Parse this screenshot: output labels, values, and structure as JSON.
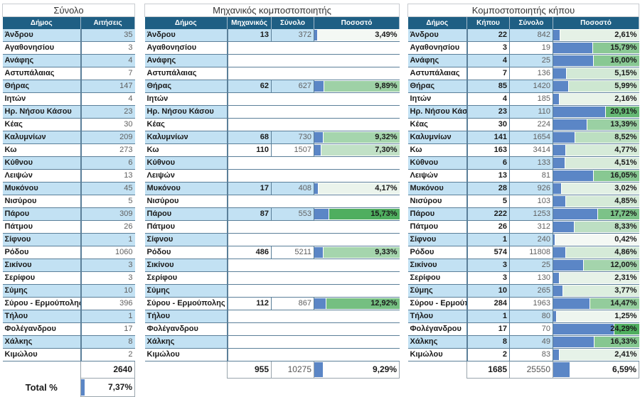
{
  "summary_table": {
    "title": "Σύνολο",
    "headers": [
      "Δήμος",
      "Αιτήσεις"
    ],
    "rows": [
      {
        "municipality": "Άνδρου",
        "applications": "35"
      },
      {
        "municipality": "Αγαθονησίου",
        "applications": "3"
      },
      {
        "municipality": "Ανάφης",
        "applications": "4"
      },
      {
        "municipality": "Αστυπάλαιας",
        "applications": "7"
      },
      {
        "municipality": "Θήρας",
        "applications": "147"
      },
      {
        "municipality": "Ιητών",
        "applications": "4"
      },
      {
        "municipality": "Ηρ. Νήσου Κάσου",
        "applications": "23"
      },
      {
        "municipality": "Κέας",
        "applications": "30"
      },
      {
        "municipality": "Καλυμνίων",
        "applications": "209"
      },
      {
        "municipality": "Κω",
        "applications": "273"
      },
      {
        "municipality": "Κύθνου",
        "applications": "6"
      },
      {
        "municipality": "Λειψών",
        "applications": "13"
      },
      {
        "municipality": "Μυκόνου",
        "applications": "45"
      },
      {
        "municipality": "Νισύρου",
        "applications": "5"
      },
      {
        "municipality": "Πάρου",
        "applications": "309"
      },
      {
        "municipality": "Πάτμου",
        "applications": "26"
      },
      {
        "municipality": "Σίφνου",
        "applications": "1"
      },
      {
        "municipality": "Ρόδου",
        "applications": "1060"
      },
      {
        "municipality": "Σικίνου",
        "applications": "3"
      },
      {
        "municipality": "Σερίφου",
        "applications": "3"
      },
      {
        "municipality": "Σύμης",
        "applications": "10"
      },
      {
        "municipality": "Σύρου - Ερμούπολης",
        "applications": "396"
      },
      {
        "municipality": "Τήλου",
        "applications": "1"
      },
      {
        "municipality": "Φολέγανδρου",
        "applications": "17"
      },
      {
        "municipality": "Χάλκης",
        "applications": "8"
      },
      {
        "municipality": "Κιμώλου",
        "applications": "2"
      }
    ],
    "total": "2640",
    "total_pct_label": "Total %",
    "total_pct": "7,37%",
    "total_pct_value": 7.37
  },
  "mechanical_table": {
    "title": "Μηχανικός κομποστοποιητής",
    "headers": [
      "Δήμος",
      "Μηχανικός",
      "Σύνολο",
      "Ποσοστό"
    ],
    "rows": [
      {
        "municipality": "Άνδρου",
        "count": "13",
        "total": "372",
        "pct": "3,49%",
        "pct_value": 3.49
      },
      {
        "municipality": "Αγαθονησίου",
        "count": "",
        "total": "",
        "pct": "",
        "pct_value": null
      },
      {
        "municipality": "Ανάφης",
        "count": "",
        "total": "",
        "pct": "",
        "pct_value": null
      },
      {
        "municipality": "Αστυπάλαιας",
        "count": "",
        "total": "",
        "pct": "",
        "pct_value": null
      },
      {
        "municipality": "Θήρας",
        "count": "62",
        "total": "627",
        "pct": "9,89%",
        "pct_value": 9.89
      },
      {
        "municipality": "Ιητών",
        "count": "",
        "total": "",
        "pct": "",
        "pct_value": null
      },
      {
        "municipality": "Ηρ. Νήσου Κάσου",
        "count": "",
        "total": "",
        "pct": "",
        "pct_value": null
      },
      {
        "municipality": "Κέας",
        "count": "",
        "total": "",
        "pct": "",
        "pct_value": null
      },
      {
        "municipality": "Καλυμνίων",
        "count": "68",
        "total": "730",
        "pct": "9,32%",
        "pct_value": 9.32
      },
      {
        "municipality": "Κω",
        "count": "110",
        "total": "1507",
        "pct": "7,30%",
        "pct_value": 7.3
      },
      {
        "municipality": "Κύθνου",
        "count": "",
        "total": "",
        "pct": "",
        "pct_value": null
      },
      {
        "municipality": "Λειψών",
        "count": "",
        "total": "",
        "pct": "",
        "pct_value": null
      },
      {
        "municipality": "Μυκόνου",
        "count": "17",
        "total": "408",
        "pct": "4,17%",
        "pct_value": 4.17
      },
      {
        "municipality": "Νισύρου",
        "count": "",
        "total": "",
        "pct": "",
        "pct_value": null
      },
      {
        "municipality": "Πάρου",
        "count": "87",
        "total": "553",
        "pct": "15,73%",
        "pct_value": 15.73
      },
      {
        "municipality": "Πάτμου",
        "count": "",
        "total": "",
        "pct": "",
        "pct_value": null
      },
      {
        "municipality": "Σίφνου",
        "count": "",
        "total": "",
        "pct": "",
        "pct_value": null
      },
      {
        "municipality": "Ρόδου",
        "count": "486",
        "total": "5211",
        "pct": "9,33%",
        "pct_value": 9.33
      },
      {
        "municipality": "Σικίνου",
        "count": "",
        "total": "",
        "pct": "",
        "pct_value": null
      },
      {
        "municipality": "Σερίφου",
        "count": "",
        "total": "",
        "pct": "",
        "pct_value": null
      },
      {
        "municipality": "Σύμης",
        "count": "",
        "total": "",
        "pct": "",
        "pct_value": null
      },
      {
        "municipality": "Σύρου - Ερμούπολης",
        "count": "112",
        "total": "867",
        "pct": "12,92%",
        "pct_value": 12.92
      },
      {
        "municipality": "Τήλου",
        "count": "",
        "total": "",
        "pct": "",
        "pct_value": null
      },
      {
        "municipality": "Φολέγανδρου",
        "count": "",
        "total": "",
        "pct": "",
        "pct_value": null
      },
      {
        "municipality": "Χάλκης",
        "count": "",
        "total": "",
        "pct": "",
        "pct_value": null
      },
      {
        "municipality": "Κιμώλου",
        "count": "",
        "total": "",
        "pct": "",
        "pct_value": null
      }
    ],
    "totals": {
      "count": "955",
      "total": "10275",
      "pct": "9,29%",
      "pct_value": 9.29
    }
  },
  "garden_table": {
    "title": "Κομποστοποιητής κήπου",
    "headers": [
      "Δήμος",
      "Κήπου",
      "Σύνολο",
      "Ποσοστό"
    ],
    "rows": [
      {
        "municipality": "Άνδρου",
        "count": "22",
        "total": "842",
        "pct": "2,61%",
        "pct_value": 2.61
      },
      {
        "municipality": "Αγαθονησίου",
        "count": "3",
        "total": "19",
        "pct": "15,79%",
        "pct_value": 15.79
      },
      {
        "municipality": "Ανάφης",
        "count": "4",
        "total": "25",
        "pct": "16,00%",
        "pct_value": 16.0
      },
      {
        "municipality": "Αστυπάλαιας",
        "count": "7",
        "total": "136",
        "pct": "5,15%",
        "pct_value": 5.15
      },
      {
        "municipality": "Θήρας",
        "count": "85",
        "total": "1420",
        "pct": "5,99%",
        "pct_value": 5.99
      },
      {
        "municipality": "Ιητών",
        "count": "4",
        "total": "185",
        "pct": "2,16%",
        "pct_value": 2.16
      },
      {
        "municipality": "Ηρ. Νήσου Κάσ",
        "count": "23",
        "total": "110",
        "pct": "20,91%",
        "pct_value": 20.91
      },
      {
        "municipality": "Κέας",
        "count": "30",
        "total": "224",
        "pct": "13,39%",
        "pct_value": 13.39
      },
      {
        "municipality": "Καλυμνίων",
        "count": "141",
        "total": "1654",
        "pct": "8,52%",
        "pct_value": 8.52
      },
      {
        "municipality": "Κω",
        "count": "163",
        "total": "3414",
        "pct": "4,77%",
        "pct_value": 4.77
      },
      {
        "municipality": "Κύθνου",
        "count": "6",
        "total": "133",
        "pct": "4,51%",
        "pct_value": 4.51
      },
      {
        "municipality": "Λειψών",
        "count": "13",
        "total": "81",
        "pct": "16,05%",
        "pct_value": 16.05
      },
      {
        "municipality": "Μυκόνου",
        "count": "28",
        "total": "926",
        "pct": "3,02%",
        "pct_value": 3.02
      },
      {
        "municipality": "Νισύρου",
        "count": "5",
        "total": "103",
        "pct": "4,85%",
        "pct_value": 4.85
      },
      {
        "municipality": "Πάρου",
        "count": "222",
        "total": "1253",
        "pct": "17,72%",
        "pct_value": 17.72
      },
      {
        "municipality": "Πάτμου",
        "count": "26",
        "total": "312",
        "pct": "8,33%",
        "pct_value": 8.33
      },
      {
        "municipality": "Σίφνου",
        "count": "1",
        "total": "240",
        "pct": "0,42%",
        "pct_value": 0.42
      },
      {
        "municipality": "Ρόδου",
        "count": "574",
        "total": "11808",
        "pct": "4,86%",
        "pct_value": 4.86
      },
      {
        "municipality": "Σικίνου",
        "count": "3",
        "total": "25",
        "pct": "12,00%",
        "pct_value": 12.0
      },
      {
        "municipality": "Σερίφου",
        "count": "3",
        "total": "130",
        "pct": "2,31%",
        "pct_value": 2.31
      },
      {
        "municipality": "Σύμης",
        "count": "10",
        "total": "265",
        "pct": "3,77%",
        "pct_value": 3.77
      },
      {
        "municipality": "Σύρου - Ερμούπ",
        "count": "284",
        "total": "1963",
        "pct": "14,47%",
        "pct_value": 14.47
      },
      {
        "municipality": "Τήλου",
        "count": "1",
        "total": "80",
        "pct": "1,25%",
        "pct_value": 1.25
      },
      {
        "municipality": "Φολέγανδρου",
        "count": "17",
        "total": "70",
        "pct": "24,29%",
        "pct_value": 24.29
      },
      {
        "municipality": "Χάλκης",
        "count": "8",
        "total": "49",
        "pct": "16,33%",
        "pct_value": 16.33
      },
      {
        "municipality": "Κιμώλου",
        "count": "2",
        "total": "83",
        "pct": "2,41%",
        "pct_value": 2.41
      }
    ],
    "totals": {
      "count": "1685",
      "total": "25550",
      "pct": "6,59%",
      "pct_value": 6.59
    }
  },
  "colors": {
    "header_bg": "#1f5f84",
    "alt_row_bg": "#c2e1f3",
    "databar": "#5b86c6",
    "scale_low": "#f4f8f4",
    "scale_high": "#4fae5f"
  }
}
